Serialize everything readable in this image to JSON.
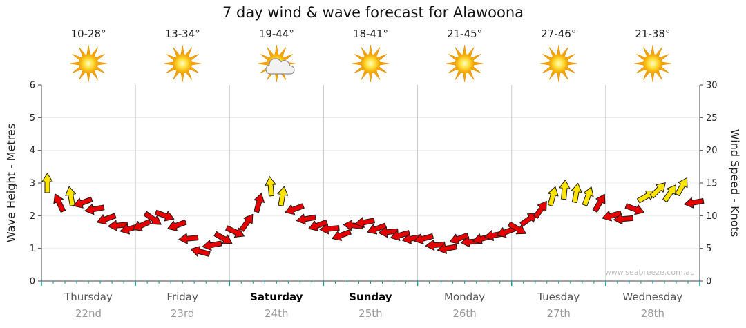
{
  "title": "7 day wind & wave forecast for Alawoona",
  "watermark": "www.seabreeze.com.au",
  "axes": {
    "left_label": "Wave Height - Metres",
    "right_label": "Wind Speed - Knots",
    "left_ticks": [
      0,
      1,
      2,
      3,
      4,
      5,
      6
    ],
    "right_ticks": [
      0,
      5,
      10,
      15,
      20,
      25,
      30
    ]
  },
  "days": [
    {
      "name": "Thursday",
      "date": "22nd",
      "temp": "10-28°",
      "icon": "sun",
      "bold": false
    },
    {
      "name": "Friday",
      "date": "23rd",
      "temp": "13-34°",
      "icon": "sun",
      "bold": false
    },
    {
      "name": "Saturday",
      "date": "24th",
      "temp": "19-44°",
      "icon": "sun-cloud",
      "bold": true
    },
    {
      "name": "Sunday",
      "date": "25th",
      "temp": "18-41°",
      "icon": "sun",
      "bold": true
    },
    {
      "name": "Monday",
      "date": "26th",
      "temp": "21-45°",
      "icon": "sun",
      "bold": false
    },
    {
      "name": "Tuesday",
      "date": "27th",
      "temp": "27-46°",
      "icon": "sun",
      "bold": false
    },
    {
      "name": "Wednesday",
      "date": "28th",
      "temp": "21-38°",
      "icon": "sun",
      "bold": false
    }
  ],
  "colors": {
    "wind_light": "#e60000",
    "wind_strong": "#ffe400",
    "arrow_outline": "#1c1c1c",
    "axis": "#444444",
    "grid_vertical": "#c9c9c9",
    "grid_horizontal": "#ececec",
    "tick_teal": "#00a0a0",
    "sun_ray": "#f7a300",
    "tick_text": "#222222"
  },
  "chart_data": {
    "type": "scatter",
    "title": "7 day wind & wave forecast for Alawoona",
    "x_categories": [
      "Thursday 22nd",
      "Friday 23rd",
      "Saturday 24th",
      "Sunday 25th",
      "Monday 26th",
      "Tuesday 27th",
      "Wednesday 28th"
    ],
    "points_per_day": 8,
    "ylabel_left": "Wave Height - Metres",
    "ylim_left": [
      0,
      6
    ],
    "ylabel_right": "Wind Speed - Knots",
    "ylim_right": [
      0,
      30
    ],
    "grid": "vertical day separators, light horizontal metre lines, teal 3-hourly ticks under baseline",
    "legend": "none",
    "series": [
      {
        "name": "Wind speed (knots)",
        "values": [
          15,
          12,
          13,
          12,
          11,
          9.5,
          8.5,
          8,
          8.5,
          9.5,
          10,
          8.5,
          6.5,
          4.5,
          5.5,
          6.5,
          7.5,
          9,
          12,
          14.5,
          13,
          11,
          9.5,
          8.5,
          8,
          7,
          8.5,
          9,
          8,
          7.5,
          7,
          6.5,
          6.5,
          5.5,
          5,
          6.5,
          6,
          6.5,
          7,
          7.5,
          8,
          9.5,
          11,
          13,
          14,
          13.5,
          13,
          12,
          10,
          9.5,
          11,
          13,
          14,
          13.5,
          14.5,
          12
        ]
      },
      {
        "name": "Wind direction (degrees, 0=pointing right, -90=up)",
        "values": [
          -90,
          -115,
          -100,
          160,
          170,
          160,
          175,
          165,
          155,
          35,
          20,
          160,
          175,
          195,
          170,
          30,
          25,
          -55,
          -75,
          -95,
          -80,
          160,
          170,
          160,
          175,
          160,
          185,
          170,
          160,
          175,
          165,
          170,
          165,
          175,
          170,
          160,
          175,
          165,
          170,
          160,
          30,
          -35,
          -55,
          -75,
          -85,
          -80,
          -70,
          -60,
          165,
          175,
          20,
          -30,
          -45,
          -55,
          -60,
          170
        ]
      },
      {
        "name": "Arrow colour (r=red lighter wind, y=yellow stronger wind)",
        "values": [
          "y",
          "r",
          "y",
          "r",
          "r",
          "r",
          "r",
          "r",
          "r",
          "r",
          "r",
          "r",
          "r",
          "r",
          "r",
          "r",
          "r",
          "r",
          "r",
          "y",
          "y",
          "r",
          "r",
          "r",
          "r",
          "r",
          "r",
          "r",
          "r",
          "r",
          "r",
          "r",
          "r",
          "r",
          "r",
          "r",
          "r",
          "r",
          "r",
          "r",
          "r",
          "r",
          "r",
          "y",
          "y",
          "y",
          "y",
          "r",
          "r",
          "r",
          "r",
          "y",
          "y",
          "y",
          "y",
          "r"
        ]
      }
    ]
  }
}
